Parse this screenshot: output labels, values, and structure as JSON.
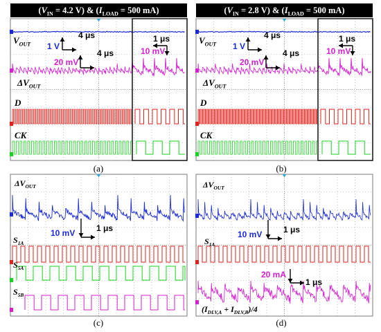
{
  "panels": {
    "a": {
      "header": "(V_IN = 4.2 V) & (I_LOAD = 500 mA)",
      "header_parts": [
        "(",
        "V",
        "IN",
        " = 4.2 V) & (",
        "I",
        "LOAD",
        " = 500 mA)"
      ],
      "caption": "(a)",
      "signals": [
        {
          "name": "V",
          "sub": "OUT",
          "color": "#1a2ad8"
        },
        {
          "name": "ΔV",
          "sub": "OUT",
          "color": "#d51fd1"
        },
        {
          "name": "D",
          "sub": "",
          "color": "#e0221c"
        },
        {
          "name": "CK",
          "sub": "",
          "color": "#16d41d"
        }
      ],
      "scales": [
        {
          "text": "1 V",
          "color": "#1a2ad8"
        },
        {
          "text": "4 μs",
          "color": "#000000"
        },
        {
          "text": "20 mV",
          "color": "#d51fd1"
        },
        {
          "text": "4 μs",
          "color": "#000000"
        },
        {
          "text": "1 μs",
          "color": "#000000"
        },
        {
          "text": "10 mV",
          "color": "#d51fd1"
        }
      ]
    },
    "b": {
      "header": "(V_IN = 2.8 V) & (I_LOAD = 500 mA)",
      "header_parts": [
        "(",
        "V",
        "IN",
        " = 2.8 V) & (",
        "I",
        "LOAD",
        " = 500 mA)"
      ],
      "caption": "(b)",
      "signals": [
        {
          "name": "V",
          "sub": "OUT",
          "color": "#1a2ad8"
        },
        {
          "name": "ΔV",
          "sub": "OUT",
          "color": "#d51fd1"
        },
        {
          "name": "D",
          "sub": "",
          "color": "#e0221c"
        },
        {
          "name": "CK",
          "sub": "",
          "color": "#16d41d"
        }
      ],
      "scales": [
        {
          "text": "1 V",
          "color": "#1a2ad8"
        },
        {
          "text": "4 μs",
          "color": "#000000"
        },
        {
          "text": "20 mV",
          "color": "#d51fd1"
        },
        {
          "text": "4 μs",
          "color": "#000000"
        },
        {
          "text": "1 μs",
          "color": "#000000"
        },
        {
          "text": "10 mV",
          "color": "#d51fd1"
        }
      ]
    },
    "c": {
      "caption": "(c)",
      "signals": [
        {
          "name": "ΔV",
          "sub": "OUT"
        },
        {
          "name": "S",
          "sub": "1A"
        },
        {
          "name": "S",
          "sub": "5A"
        },
        {
          "name": "S",
          "sub": "5B"
        }
      ],
      "scales": [
        {
          "text": "10 mV",
          "color": "#1a2ad8"
        },
        {
          "text": "1 μs",
          "color": "#000000"
        }
      ]
    },
    "d": {
      "caption": "(d)",
      "signals": [
        {
          "name": "ΔV",
          "sub": "OUT"
        },
        {
          "name": "S",
          "sub": "1A"
        },
        {
          "name": "(I",
          "sub": "DLV,A",
          "mid": " + I",
          "sub2": "DLV,B",
          "tail": ")/4"
        }
      ],
      "scales": [
        {
          "text": "10 mV",
          "color": "#1a2ad8"
        },
        {
          "text": "1 μs",
          "color": "#000000"
        },
        {
          "text": "20 mA",
          "color": "#d51fd1"
        },
        {
          "text": "1 μs",
          "color": "#000000"
        }
      ]
    }
  },
  "colors": {
    "blue": "#1a2ad8",
    "magenta": "#d51fd1",
    "red": "#e0221c",
    "green": "#16d41d",
    "grid": "#9a9a9a"
  }
}
